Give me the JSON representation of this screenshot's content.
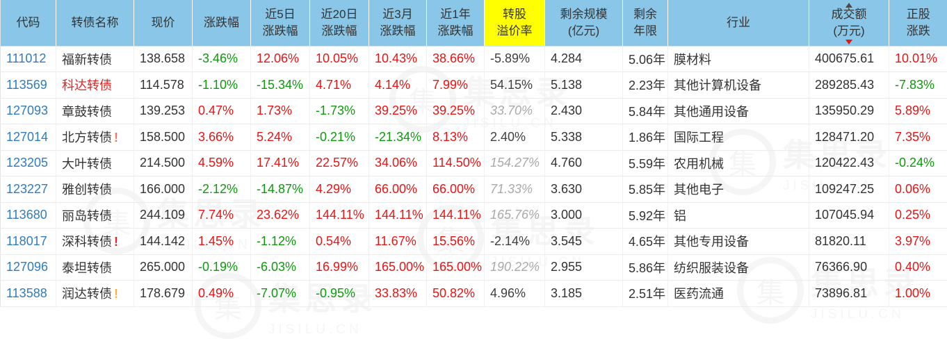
{
  "colors": {
    "up": "#e81414",
    "down": "#0c9a0c",
    "flat": "#3f3f3f",
    "muted": "#a9a9a9",
    "text": "#333333",
    "code_link": "#2f7bbf",
    "name_alert": "#e62222",
    "header_bg": "#8ac6e7",
    "header_text": "#333333",
    "highlight_bg": "#ffff00",
    "sort_asc": "#4a4a4a",
    "sort_desc": "#e81414"
  },
  "watermark": {
    "logo_char": "集",
    "logo_text": "集思录",
    "url_text": "JISILU.CN"
  },
  "table": {
    "columns": [
      {
        "key": "code",
        "label": [
          "代码"
        ]
      },
      {
        "key": "name",
        "label": [
          "转债名称"
        ]
      },
      {
        "key": "price",
        "label": [
          "现价"
        ]
      },
      {
        "key": "chg",
        "label": [
          "涨跌幅"
        ]
      },
      {
        "key": "chg5d",
        "label": [
          "近5日",
          "涨跌幅"
        ]
      },
      {
        "key": "chg20d",
        "label": [
          "近20日",
          "涨跌幅"
        ]
      },
      {
        "key": "chg3m",
        "label": [
          "近3月",
          "涨跌幅"
        ]
      },
      {
        "key": "chg1y",
        "label": [
          "近1年",
          "涨跌幅"
        ]
      },
      {
        "key": "premium",
        "label": [
          "转股",
          "溢价率"
        ],
        "highlight": true
      },
      {
        "key": "size",
        "label": [
          "剩余规模",
          "(亿元)"
        ]
      },
      {
        "key": "years",
        "label": [
          "剩余",
          "年限"
        ]
      },
      {
        "key": "industry",
        "label": [
          "行业"
        ]
      },
      {
        "key": "turnover",
        "label": [
          "成交额",
          "(万元)"
        ],
        "sorted": "desc"
      },
      {
        "key": "stockchg",
        "label": [
          "正股",
          "涨跌"
        ]
      }
    ],
    "rows": [
      {
        "code": "111012",
        "name": "福新转债",
        "name_red": false,
        "flag": "",
        "flag_color": "",
        "cells": {
          "price": "138.658",
          "chg": [
            "-3.46%",
            "down"
          ],
          "chg5d": [
            "12.06%",
            "up"
          ],
          "chg20d": [
            "10.05%",
            "up"
          ],
          "chg3m": [
            "10.43%",
            "up"
          ],
          "chg1y": [
            "38.66%",
            "up"
          ],
          "premium": [
            "-5.89%",
            "flat"
          ],
          "size": "4.284",
          "years": "5.06年",
          "industry": "膜材料",
          "turnover": "400675.61",
          "stockchg": [
            "10.01%",
            "up"
          ]
        }
      },
      {
        "code": "113569",
        "name": "科达转债",
        "name_red": true,
        "flag": "",
        "flag_color": "",
        "cells": {
          "price": "114.578",
          "chg": [
            "-1.10%",
            "down"
          ],
          "chg5d": [
            "-15.34%",
            "down"
          ],
          "chg20d": [
            "4.71%",
            "up"
          ],
          "chg3m": [
            "4.14%",
            "up"
          ],
          "chg1y": [
            "7.99%",
            "up"
          ],
          "premium": [
            "54.15%",
            "flat"
          ],
          "size": "5.138",
          "years": "2.23年",
          "industry": "其他计算机设备",
          "turnover": "289285.43",
          "stockchg": [
            "-7.83%",
            "down"
          ]
        }
      },
      {
        "code": "127093",
        "name": "章鼓转债",
        "name_red": false,
        "flag": "",
        "flag_color": "",
        "cells": {
          "price": "139.253",
          "chg": [
            "0.47%",
            "up"
          ],
          "chg5d": [
            "1.73%",
            "up"
          ],
          "chg20d": [
            "-1.73%",
            "down"
          ],
          "chg3m": [
            "39.25%",
            "up"
          ],
          "chg1y": [
            "39.25%",
            "up"
          ],
          "premium": [
            "33.70%",
            "muted"
          ],
          "size": "2.430",
          "years": "5.84年",
          "industry": "其他通用设备",
          "turnover": "135950.29",
          "stockchg": [
            "5.89%",
            "up"
          ]
        }
      },
      {
        "code": "127014",
        "name": "北方转债",
        "name_red": false,
        "flag": "!",
        "flag_color": "#f07566",
        "cells": {
          "price": "158.500",
          "chg": [
            "3.66%",
            "up"
          ],
          "chg5d": [
            "5.24%",
            "up"
          ],
          "chg20d": [
            "-0.21%",
            "down"
          ],
          "chg3m": [
            "-21.34%",
            "down"
          ],
          "chg1y": [
            "8.13%",
            "up"
          ],
          "premium": [
            "2.40%",
            "flat"
          ],
          "size": "5.338",
          "years": "1.86年",
          "industry": "国际工程",
          "turnover": "128471.20",
          "stockchg": [
            "7.35%",
            "up"
          ]
        }
      },
      {
        "code": "123205",
        "name": "大叶转债",
        "name_red": false,
        "flag": "",
        "flag_color": "",
        "cells": {
          "price": "214.500",
          "chg": [
            "4.59%",
            "up"
          ],
          "chg5d": [
            "17.41%",
            "up"
          ],
          "chg20d": [
            "22.57%",
            "up"
          ],
          "chg3m": [
            "34.06%",
            "up"
          ],
          "chg1y": [
            "114.50%",
            "up"
          ],
          "premium": [
            "154.27%",
            "muted"
          ],
          "size": "4.760",
          "years": "5.59年",
          "industry": "农用机械",
          "turnover": "120422.43",
          "stockchg": [
            "-0.24%",
            "down"
          ]
        }
      },
      {
        "code": "123227",
        "name": "雅创转债",
        "name_red": false,
        "flag": "",
        "flag_color": "",
        "cells": {
          "price": "166.000",
          "chg": [
            "-2.12%",
            "down"
          ],
          "chg5d": [
            "-14.87%",
            "down"
          ],
          "chg20d": [
            "4.29%",
            "up"
          ],
          "chg3m": [
            "66.00%",
            "up"
          ],
          "chg1y": [
            "66.00%",
            "up"
          ],
          "premium": [
            "71.33%",
            "muted"
          ],
          "size": "3.630",
          "years": "5.85年",
          "industry": "其他电子",
          "turnover": "109247.25",
          "stockchg": [
            "0.06%",
            "up"
          ]
        }
      },
      {
        "code": "113680",
        "name": "丽岛转债",
        "name_red": false,
        "flag": "",
        "flag_color": "",
        "cells": {
          "price": "244.109",
          "chg": [
            "7.74%",
            "up"
          ],
          "chg5d": [
            "23.62%",
            "up"
          ],
          "chg20d": [
            "144.11%",
            "up"
          ],
          "chg3m": [
            "144.11%",
            "up"
          ],
          "chg1y": [
            "144.11%",
            "up"
          ],
          "premium": [
            "165.76%",
            "muted"
          ],
          "size": "3.000",
          "years": "5.92年",
          "industry": "铝",
          "turnover": "107045.94",
          "stockchg": [
            "0.25%",
            "up"
          ]
        }
      },
      {
        "code": "118017",
        "name": "深科转债",
        "name_red": false,
        "flag": "!",
        "flag_color": "#e62222",
        "cells": {
          "price": "144.142",
          "chg": [
            "1.45%",
            "up"
          ],
          "chg5d": [
            "-1.12%",
            "down"
          ],
          "chg20d": [
            "0.54%",
            "up"
          ],
          "chg3m": [
            "11.67%",
            "up"
          ],
          "chg1y": [
            "15.56%",
            "up"
          ],
          "premium": [
            "-2.14%",
            "flat"
          ],
          "size": "3.545",
          "years": "4.65年",
          "industry": "其他专用设备",
          "turnover": "81820.11",
          "stockchg": [
            "3.97%",
            "up"
          ]
        }
      },
      {
        "code": "127096",
        "name": "泰坦转债",
        "name_red": false,
        "flag": "",
        "flag_color": "",
        "cells": {
          "price": "265.000",
          "chg": [
            "-0.19%",
            "down"
          ],
          "chg5d": [
            "-6.03%",
            "down"
          ],
          "chg20d": [
            "16.99%",
            "up"
          ],
          "chg3m": [
            "165.00%",
            "up"
          ],
          "chg1y": [
            "165.00%",
            "up"
          ],
          "premium": [
            "190.22%",
            "muted"
          ],
          "size": "2.955",
          "years": "5.86年",
          "industry": "纺织服装设备",
          "turnover": "76366.90",
          "stockchg": [
            "0.40%",
            "up"
          ]
        }
      },
      {
        "code": "113588",
        "name": "润达转债",
        "name_red": false,
        "flag": "!",
        "flag_color": "#fbb03b",
        "cells": {
          "price": "178.679",
          "chg": [
            "0.49%",
            "up"
          ],
          "chg5d": [
            "-7.07%",
            "down"
          ],
          "chg20d": [
            "-0.95%",
            "down"
          ],
          "chg3m": [
            "33.83%",
            "up"
          ],
          "chg1y": [
            "50.82%",
            "up"
          ],
          "premium": [
            "4.96%",
            "flat"
          ],
          "size": "3.185",
          "years": "2.51年",
          "industry": "医药流通",
          "turnover": "73896.81",
          "stockchg": [
            "1.00%",
            "up"
          ]
        }
      }
    ]
  }
}
